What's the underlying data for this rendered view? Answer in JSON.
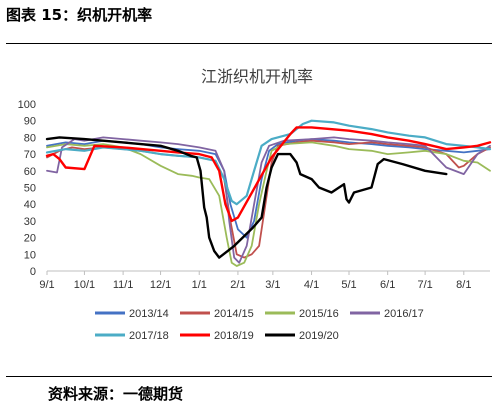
{
  "figure_title": "图表 15：织机开机率",
  "source_note": "资料来源：一德期货",
  "chart_data": {
    "type": "line",
    "title": "江浙织机开机率",
    "xlabel": "",
    "ylabel": "",
    "ylim": [
      0,
      100
    ],
    "y_ticks": [
      0,
      10,
      20,
      30,
      40,
      50,
      60,
      70,
      80,
      90,
      100
    ],
    "xlim": [
      0,
      355
    ],
    "x_ticks": [
      {
        "label": "9/1",
        "x": 0
      },
      {
        "label": "10/1",
        "x": 30
      },
      {
        "label": "11/1",
        "x": 61
      },
      {
        "label": "12/1",
        "x": 91
      },
      {
        "label": "1/1",
        "x": 122
      },
      {
        "label": "2/1",
        "x": 153
      },
      {
        "label": "3/1",
        "x": 181
      },
      {
        "label": "4/1",
        "x": 212
      },
      {
        "label": "5/1",
        "x": 242
      },
      {
        "label": "6/1",
        "x": 273
      },
      {
        "label": "7/1",
        "x": 303
      },
      {
        "label": "8/1",
        "x": 334
      }
    ],
    "grid": false,
    "legend_position": "bottom",
    "series": [
      {
        "name": "2013/14",
        "color": "#4472C4",
        "width": 1.8,
        "points": [
          [
            0,
            75
          ],
          [
            15,
            77
          ],
          [
            30,
            76
          ],
          [
            45,
            78
          ],
          [
            61,
            77
          ],
          [
            75,
            76
          ],
          [
            91,
            74
          ],
          [
            105,
            73
          ],
          [
            122,
            72
          ],
          [
            135,
            70
          ],
          [
            142,
            60
          ],
          [
            147,
            40
          ],
          [
            153,
            25
          ],
          [
            160,
            20
          ],
          [
            166,
            30
          ],
          [
            172,
            55
          ],
          [
            178,
            72
          ],
          [
            185,
            76
          ],
          [
            200,
            78
          ],
          [
            212,
            79
          ],
          [
            230,
            78
          ],
          [
            242,
            77
          ],
          [
            260,
            76
          ],
          [
            273,
            75
          ],
          [
            290,
            74
          ],
          [
            303,
            73
          ],
          [
            320,
            72
          ],
          [
            334,
            71
          ],
          [
            345,
            72
          ],
          [
            355,
            73
          ]
        ]
      },
      {
        "name": "2014/15",
        "color": "#C0504D",
        "width": 1.8,
        "points": [
          [
            0,
            68
          ],
          [
            10,
            72
          ],
          [
            20,
            74
          ],
          [
            30,
            73
          ],
          [
            45,
            74
          ],
          [
            61,
            73
          ],
          [
            75,
            72
          ],
          [
            91,
            70
          ],
          [
            105,
            69
          ],
          [
            122,
            68
          ],
          [
            135,
            66
          ],
          [
            142,
            55
          ],
          [
            147,
            30
          ],
          [
            152,
            10
          ],
          [
            158,
            8
          ],
          [
            164,
            10
          ],
          [
            170,
            15
          ],
          [
            175,
            40
          ],
          [
            180,
            65
          ],
          [
            185,
            75
          ],
          [
            200,
            77
          ],
          [
            212,
            78
          ],
          [
            230,
            77
          ],
          [
            242,
            76
          ],
          [
            260,
            77
          ],
          [
            273,
            76
          ],
          [
            290,
            75
          ],
          [
            303,
            74
          ],
          [
            320,
            70
          ],
          [
            330,
            62
          ],
          [
            334,
            63
          ],
          [
            345,
            70
          ],
          [
            355,
            74
          ]
        ]
      },
      {
        "name": "2015/16",
        "color": "#9BBB59",
        "width": 1.8,
        "points": [
          [
            0,
            74
          ],
          [
            15,
            76
          ],
          [
            30,
            75
          ],
          [
            45,
            76
          ],
          [
            61,
            74
          ],
          [
            75,
            70
          ],
          [
            91,
            63
          ],
          [
            105,
            58
          ],
          [
            116,
            57
          ],
          [
            122,
            56
          ],
          [
            130,
            55
          ],
          [
            138,
            45
          ],
          [
            144,
            20
          ],
          [
            148,
            5
          ],
          [
            152,
            3
          ],
          [
            158,
            5
          ],
          [
            164,
            15
          ],
          [
            170,
            40
          ],
          [
            176,
            60
          ],
          [
            180,
            72
          ],
          [
            190,
            76
          ],
          [
            212,
            77
          ],
          [
            230,
            75
          ],
          [
            242,
            73
          ],
          [
            260,
            72
          ],
          [
            273,
            70
          ],
          [
            290,
            71
          ],
          [
            303,
            72
          ],
          [
            320,
            70
          ],
          [
            334,
            66
          ],
          [
            345,
            65
          ],
          [
            355,
            60
          ]
        ]
      },
      {
        "name": "2016/17",
        "color": "#8064A2",
        "width": 1.8,
        "points": [
          [
            0,
            60
          ],
          [
            8,
            59
          ],
          [
            12,
            74
          ],
          [
            22,
            79
          ],
          [
            30,
            78
          ],
          [
            45,
            80
          ],
          [
            61,
            79
          ],
          [
            75,
            78
          ],
          [
            91,
            77
          ],
          [
            105,
            76
          ],
          [
            122,
            74
          ],
          [
            135,
            72
          ],
          [
            142,
            60
          ],
          [
            146,
            30
          ],
          [
            150,
            8
          ],
          [
            154,
            5
          ],
          [
            160,
            15
          ],
          [
            166,
            40
          ],
          [
            172,
            65
          ],
          [
            178,
            75
          ],
          [
            190,
            78
          ],
          [
            212,
            79
          ],
          [
            230,
            80
          ],
          [
            242,
            79
          ],
          [
            260,
            78
          ],
          [
            273,
            77
          ],
          [
            290,
            76
          ],
          [
            303,
            75
          ],
          [
            320,
            62
          ],
          [
            334,
            58
          ],
          [
            345,
            70
          ],
          [
            355,
            75
          ]
        ]
      },
      {
        "name": "2017/18",
        "color": "#4BACC6",
        "width": 2.2,
        "points": [
          [
            0,
            71
          ],
          [
            15,
            73
          ],
          [
            30,
            72
          ],
          [
            45,
            74
          ],
          [
            61,
            73
          ],
          [
            75,
            72
          ],
          [
            91,
            70
          ],
          [
            105,
            69
          ],
          [
            122,
            68
          ],
          [
            135,
            66
          ],
          [
            142,
            55
          ],
          [
            148,
            42
          ],
          [
            152,
            40
          ],
          [
            160,
            45
          ],
          [
            166,
            60
          ],
          [
            172,
            75
          ],
          [
            180,
            79
          ],
          [
            195,
            82
          ],
          [
            205,
            88
          ],
          [
            212,
            90
          ],
          [
            230,
            89
          ],
          [
            242,
            87
          ],
          [
            260,
            85
          ],
          [
            273,
            83
          ],
          [
            290,
            81
          ],
          [
            303,
            80
          ],
          [
            320,
            76
          ],
          [
            334,
            75
          ],
          [
            345,
            74
          ],
          [
            355,
            73
          ]
        ]
      },
      {
        "name": "2018/19",
        "color": "#FF0000",
        "width": 2.4,
        "points": [
          [
            0,
            69
          ],
          [
            5,
            70
          ],
          [
            10,
            67
          ],
          [
            15,
            62
          ],
          [
            30,
            61
          ],
          [
            38,
            75
          ],
          [
            61,
            74
          ],
          [
            91,
            72
          ],
          [
            105,
            71
          ],
          [
            122,
            70
          ],
          [
            132,
            68
          ],
          [
            138,
            60
          ],
          [
            143,
            40
          ],
          [
            148,
            30
          ],
          [
            153,
            32
          ],
          [
            165,
            48
          ],
          [
            180,
            68
          ],
          [
            195,
            82
          ],
          [
            200,
            86
          ],
          [
            212,
            86
          ],
          [
            242,
            84
          ],
          [
            260,
            82
          ],
          [
            273,
            80
          ],
          [
            290,
            78
          ],
          [
            303,
            76
          ],
          [
            320,
            73
          ],
          [
            334,
            74
          ],
          [
            345,
            75
          ],
          [
            355,
            77
          ]
        ]
      },
      {
        "name": "2019/20",
        "color": "#000000",
        "width": 2.4,
        "points": [
          [
            0,
            79
          ],
          [
            10,
            80
          ],
          [
            30,
            79
          ],
          [
            45,
            78
          ],
          [
            61,
            77
          ],
          [
            75,
            76
          ],
          [
            91,
            75
          ],
          [
            105,
            72
          ],
          [
            115,
            69
          ],
          [
            120,
            68
          ],
          [
            123,
            60
          ],
          [
            126,
            38
          ],
          [
            128,
            32
          ],
          [
            130,
            20
          ],
          [
            134,
            12
          ],
          [
            138,
            8
          ],
          [
            150,
            15
          ],
          [
            165,
            26
          ],
          [
            172,
            32
          ],
          [
            176,
            50
          ],
          [
            180,
            62
          ],
          [
            185,
            70
          ],
          [
            195,
            70
          ],
          [
            200,
            65
          ],
          [
            203,
            58
          ],
          [
            212,
            55
          ],
          [
            218,
            50
          ],
          [
            228,
            47
          ],
          [
            234,
            50
          ],
          [
            238,
            52
          ],
          [
            240,
            43
          ],
          [
            242,
            41
          ],
          [
            246,
            47
          ],
          [
            260,
            50
          ],
          [
            265,
            64
          ],
          [
            270,
            67
          ],
          [
            285,
            64
          ],
          [
            303,
            60
          ],
          [
            320,
            58
          ]
        ]
      }
    ]
  }
}
